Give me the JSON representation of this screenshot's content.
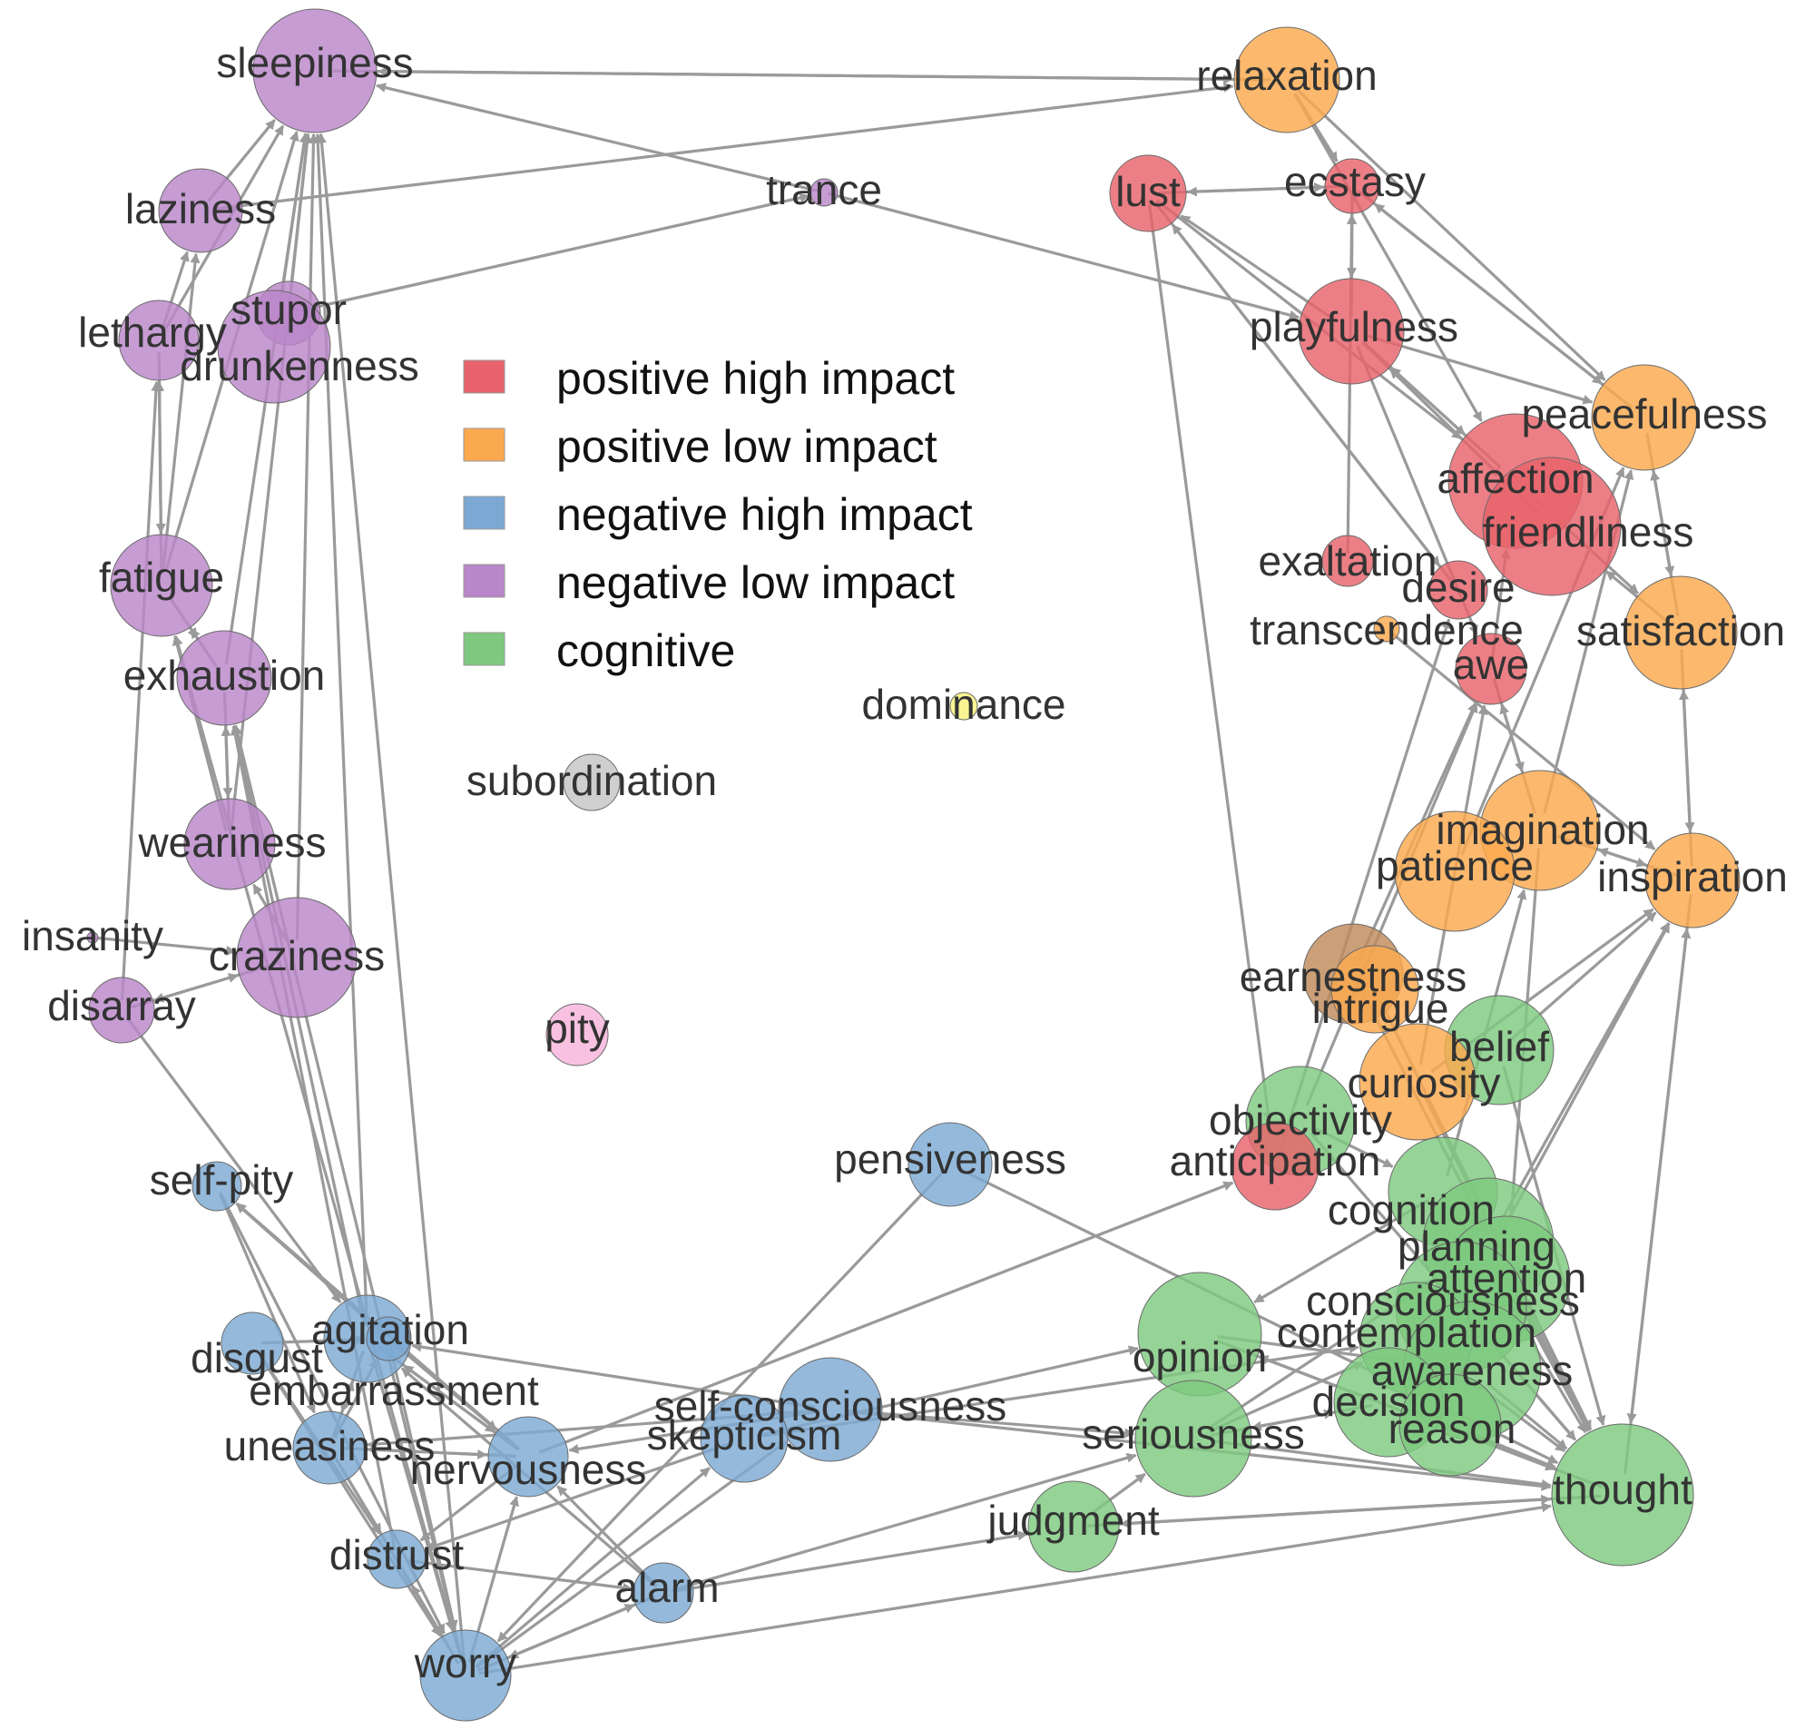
{
  "legend": {
    "items": [
      {
        "label": "positive high impact",
        "color": "#e8636b"
      },
      {
        "label": "positive low impact",
        "color": "#fba94e"
      },
      {
        "label": "negative high impact",
        "color": "#7ca9d3"
      },
      {
        "label": "negative low impact",
        "color": "#b986c9"
      },
      {
        "label": "cognitive",
        "color": "#7ec97f"
      }
    ]
  },
  "colors": {
    "positive_high": "#e8636b",
    "positive_low": "#fba94e",
    "negative_high": "#7ca9d3",
    "negative_low": "#b986c9",
    "cognitive": "#7ec97f",
    "subordination": "#c4c4c4",
    "dominance": "#f6f27a",
    "pity": "#f7b3da",
    "edge": "#9a9a9a",
    "label": "#333333"
  },
  "nodes": [
    {
      "id": "sleepiness",
      "label": "sleepiness",
      "group": "negative_low"
    },
    {
      "id": "laziness",
      "label": "laziness",
      "group": "negative_low"
    },
    {
      "id": "lethargy",
      "label": "lethargy",
      "group": "negative_low"
    },
    {
      "id": "stupor",
      "label": "stupor",
      "group": "negative_low"
    },
    {
      "id": "drunkenness",
      "label": "drunkenness",
      "group": "negative_low"
    },
    {
      "id": "fatigue",
      "label": "fatigue",
      "group": "negative_low"
    },
    {
      "id": "exhaustion",
      "label": "exhaustion",
      "group": "negative_low"
    },
    {
      "id": "weariness",
      "label": "weariness",
      "group": "negative_low"
    },
    {
      "id": "insanity",
      "label": "insanity",
      "group": "negative_low"
    },
    {
      "id": "craziness",
      "label": "craziness",
      "group": "negative_low"
    },
    {
      "id": "disarray",
      "label": "disarray",
      "group": "negative_low"
    },
    {
      "id": "trance",
      "label": "trance",
      "group": "negative_low"
    },
    {
      "id": "relaxation",
      "label": "relaxation",
      "group": "positive_low"
    },
    {
      "id": "lust",
      "label": "lust",
      "group": "positive_high"
    },
    {
      "id": "ecstasy",
      "label": "ecstasy",
      "group": "positive_high"
    },
    {
      "id": "playfulness",
      "label": "playfulness",
      "group": "positive_high"
    },
    {
      "id": "peacefulness",
      "label": "peacefulness",
      "group": "positive_low"
    },
    {
      "id": "affection",
      "label": "affection",
      "group": "positive_high"
    },
    {
      "id": "friendliness",
      "label": "friendliness",
      "group": "positive_high"
    },
    {
      "id": "exaltation",
      "label": "exaltation",
      "group": "positive_high"
    },
    {
      "id": "desire",
      "label": "desire",
      "group": "positive_high"
    },
    {
      "id": "transcendence",
      "label": "transcendence",
      "group": "positive_low"
    },
    {
      "id": "satisfaction",
      "label": "satisfaction",
      "group": "positive_low"
    },
    {
      "id": "awe",
      "label": "awe",
      "group": "positive_high"
    },
    {
      "id": "imagination",
      "label": "imagination",
      "group": "positive_low"
    },
    {
      "id": "patience",
      "label": "patience",
      "group": "positive_low"
    },
    {
      "id": "inspiration",
      "label": "inspiration",
      "group": "positive_low"
    },
    {
      "id": "earnestness",
      "label": "earnestness",
      "group": "earnest"
    },
    {
      "id": "intrigue",
      "label": "intrigue",
      "group": "positive_low"
    },
    {
      "id": "belief",
      "label": "belief",
      "group": "cognitive"
    },
    {
      "id": "curiosity",
      "label": "curiosity",
      "group": "positive_low"
    },
    {
      "id": "objectivity",
      "label": "objectivity",
      "group": "cognitive"
    },
    {
      "id": "anticipation",
      "label": "anticipation",
      "group": "positive_high"
    },
    {
      "id": "cognition",
      "label": "cognition",
      "group": "cognitive"
    },
    {
      "id": "planning",
      "label": "planning",
      "group": "cognitive"
    },
    {
      "id": "attention",
      "label": "attention",
      "group": "cognitive"
    },
    {
      "id": "consciousness",
      "label": "consciousness",
      "group": "cognitive"
    },
    {
      "id": "contemplation",
      "label": "contemplation",
      "group": "cognitive"
    },
    {
      "id": "opinion",
      "label": "opinion",
      "group": "cognitive"
    },
    {
      "id": "awareness",
      "label": "awareness",
      "group": "cognitive"
    },
    {
      "id": "decision",
      "label": "decision",
      "group": "cognitive"
    },
    {
      "id": "reason",
      "label": "reason",
      "group": "cognitive"
    },
    {
      "id": "seriousness",
      "label": "seriousness",
      "group": "cognitive"
    },
    {
      "id": "thought",
      "label": "thought",
      "group": "cognitive"
    },
    {
      "id": "judgment",
      "label": "judgment",
      "group": "cognitive"
    },
    {
      "id": "dominance",
      "label": "dominance",
      "group": "dominance"
    },
    {
      "id": "subordination",
      "label": "subordination",
      "group": "subordination"
    },
    {
      "id": "pity",
      "label": "pity",
      "group": "pity"
    },
    {
      "id": "pensiveness",
      "label": "pensiveness",
      "group": "negative_high"
    },
    {
      "id": "self-pity",
      "label": "self-pity",
      "group": "negative_high"
    },
    {
      "id": "agitation",
      "label": "agitation",
      "group": "negative_high"
    },
    {
      "id": "disgust",
      "label": "disgust",
      "group": "negative_high"
    },
    {
      "id": "embarrassment",
      "label": "embarrassment",
      "group": "negative_high"
    },
    {
      "id": "uneasiness",
      "label": "uneasiness",
      "group": "negative_high"
    },
    {
      "id": "nervousness",
      "label": "nervousness",
      "group": "negative_high"
    },
    {
      "id": "self-consciousness",
      "label": "self-consciousness",
      "group": "negative_high"
    },
    {
      "id": "skepticism",
      "label": "skepticism",
      "group": "negative_high"
    },
    {
      "id": "distrust",
      "label": "distrust",
      "group": "negative_high"
    },
    {
      "id": "alarm",
      "label": "alarm",
      "group": "negative_high"
    },
    {
      "id": "worry",
      "label": "worry",
      "group": "negative_high"
    }
  ],
  "edges": [
    [
      "sleepiness",
      "relaxation"
    ],
    [
      "relaxation",
      "sleepiness"
    ],
    [
      "trance",
      "sleepiness"
    ],
    [
      "laziness",
      "relaxation"
    ],
    [
      "stupor",
      "trance"
    ],
    [
      "trance",
      "playfulness"
    ],
    [
      "laziness",
      "sleepiness"
    ],
    [
      "lethargy",
      "laziness"
    ],
    [
      "lethargy",
      "sleepiness"
    ],
    [
      "drunkenness",
      "sleepiness"
    ],
    [
      "stupor",
      "sleepiness"
    ],
    [
      "fatigue",
      "sleepiness"
    ],
    [
      "fatigue",
      "laziness"
    ],
    [
      "fatigue",
      "lethargy"
    ],
    [
      "lethargy",
      "fatigue"
    ],
    [
      "exhaustion",
      "fatigue"
    ],
    [
      "fatigue",
      "exhaustion"
    ],
    [
      "exhaustion",
      "sleepiness"
    ],
    [
      "weariness",
      "exhaustion"
    ],
    [
      "exhaustion",
      "weariness"
    ],
    [
      "weariness",
      "fatigue"
    ],
    [
      "weariness",
      "sleepiness"
    ],
    [
      "craziness",
      "weariness"
    ],
    [
      "insanity",
      "craziness"
    ],
    [
      "craziness",
      "disarray"
    ],
    [
      "disarray",
      "lethargy"
    ],
    [
      "disarray",
      "craziness"
    ],
    [
      "craziness",
      "sleepiness"
    ],
    [
      "agitation",
      "sleepiness"
    ],
    [
      "agitation",
      "exhaustion"
    ],
    [
      "worry",
      "sleepiness"
    ],
    [
      "worry",
      "fatigue"
    ],
    [
      "worry",
      "exhaustion"
    ],
    [
      "distrust",
      "exhaustion"
    ],
    [
      "disarray",
      "agitation"
    ],
    [
      "lust",
      "ecstasy"
    ],
    [
      "ecstasy",
      "lust"
    ],
    [
      "relaxation",
      "ecstasy"
    ],
    [
      "relaxation",
      "peacefulness"
    ],
    [
      "relaxation",
      "affection"
    ],
    [
      "ecstasy",
      "playfulness"
    ],
    [
      "playfulness",
      "ecstasy"
    ],
    [
      "ecstasy",
      "peacefulness"
    ],
    [
      "peacefulness",
      "ecstasy"
    ],
    [
      "lust",
      "affection"
    ],
    [
      "lust",
      "desire"
    ],
    [
      "desire",
      "lust"
    ],
    [
      "playfulness",
      "lust"
    ],
    [
      "lust",
      "anticipation"
    ],
    [
      "playfulness",
      "affection"
    ],
    [
      "affection",
      "playfulness"
    ],
    [
      "playfulness",
      "peacefulness"
    ],
    [
      "playfulness",
      "friendliness"
    ],
    [
      "friendliness",
      "playfulness"
    ],
    [
      "exaltation",
      "ecstasy"
    ],
    [
      "playfulness",
      "awe"
    ],
    [
      "awe",
      "affection"
    ],
    [
      "peacefulness",
      "satisfaction"
    ],
    [
      "satisfaction",
      "peacefulness"
    ],
    [
      "affection",
      "satisfaction"
    ],
    [
      "satisfaction",
      "friendliness"
    ],
    [
      "satisfaction",
      "inspiration"
    ],
    [
      "inspiration",
      "satisfaction"
    ],
    [
      "transcendence",
      "inspiration"
    ],
    [
      "imagination",
      "inspiration"
    ],
    [
      "patience",
      "peacefulness"
    ],
    [
      "imagination",
      "peacefulness"
    ],
    [
      "inspiration",
      "imagination"
    ],
    [
      "awe",
      "imagination"
    ],
    [
      "imagination",
      "awe"
    ],
    [
      "earnestness",
      "awe"
    ],
    [
      "curiosity",
      "inspiration"
    ],
    [
      "belief",
      "inspiration"
    ],
    [
      "thought",
      "inspiration"
    ],
    [
      "inspiration",
      "thought"
    ],
    [
      "cognition",
      "imagination"
    ],
    [
      "planning",
      "inspiration"
    ],
    [
      "imagination",
      "attention"
    ],
    [
      "consciousness",
      "inspiration"
    ],
    [
      "objectivity",
      "awe"
    ],
    [
      "anticipation",
      "desire"
    ],
    [
      "curiosity",
      "awe"
    ],
    [
      "cognition",
      "opinion"
    ],
    [
      "opinion",
      "thought"
    ],
    [
      "thought",
      "opinion"
    ],
    [
      "contemplation",
      "thought"
    ],
    [
      "awareness",
      "thought"
    ],
    [
      "decision",
      "thought"
    ],
    [
      "reason",
      "thought"
    ],
    [
      "seriousness",
      "thought"
    ],
    [
      "judgment",
      "thought"
    ],
    [
      "thought",
      "judgment"
    ],
    [
      "planning",
      "thought"
    ],
    [
      "attention",
      "thought"
    ],
    [
      "consciousness",
      "thought"
    ],
    [
      "cognition",
      "thought"
    ],
    [
      "belief",
      "thought"
    ],
    [
      "curiosity",
      "thought"
    ],
    [
      "earnestness",
      "thought"
    ],
    [
      "intrigue",
      "thought"
    ],
    [
      "judgment",
      "seriousness"
    ],
    [
      "seriousness",
      "decision"
    ],
    [
      "seriousness",
      "contemplation"
    ],
    [
      "opinion",
      "awareness"
    ],
    [
      "decision",
      "seriousness"
    ],
    [
      "objectivity",
      "cognition"
    ],
    [
      "objectivity",
      "thought"
    ],
    [
      "seriousness",
      "planning"
    ],
    [
      "pensiveness",
      "thought"
    ],
    [
      "pensiveness",
      "worry"
    ],
    [
      "self-consciousness",
      "thought"
    ],
    [
      "self-consciousness",
      "agitation"
    ],
    [
      "self-consciousness",
      "seriousness"
    ],
    [
      "skepticism",
      "opinion"
    ],
    [
      "skepticism",
      "contemplation"
    ],
    [
      "embarrassment",
      "self-pity"
    ],
    [
      "nervousness",
      "self-pity"
    ],
    [
      "self-pity",
      "uneasiness"
    ],
    [
      "self-pity",
      "worry"
    ],
    [
      "nervousness",
      "anticipation"
    ],
    [
      "alarm",
      "seriousness"
    ],
    [
      "alarm",
      "judgment"
    ],
    [
      "alarm",
      "worry"
    ],
    [
      "worry",
      "alarm"
    ],
    [
      "alarm",
      "agitation"
    ],
    [
      "alarm",
      "nervousness"
    ],
    [
      "distrust",
      "alarm"
    ],
    [
      "worry",
      "nervousness"
    ],
    [
      "worry",
      "skepticism"
    ],
    [
      "worry",
      "self-consciousness"
    ],
    [
      "worry",
      "thought"
    ],
    [
      "agitation",
      "worry"
    ],
    [
      "disgust",
      "worry"
    ],
    [
      "uneasiness",
      "worry"
    ],
    [
      "uneasiness",
      "nervousness"
    ],
    [
      "nervousness",
      "uneasiness"
    ],
    [
      "embarrassment",
      "worry"
    ],
    [
      "distrust",
      "worry"
    ],
    [
      "worry",
      "distrust"
    ],
    [
      "uneasiness",
      "distrust"
    ],
    [
      "nervousness",
      "distrust"
    ],
    [
      "disgust",
      "distrust"
    ],
    [
      "agitation",
      "uneasiness"
    ],
    [
      "uneasiness",
      "agitation"
    ],
    [
      "nervousness",
      "agitation"
    ],
    [
      "disgust",
      "embarrassment"
    ],
    [
      "agitation",
      "nervousness"
    ],
    [
      "skepticism",
      "distrust"
    ],
    [
      "self-consciousness",
      "nervousness"
    ],
    [
      "embarrassment",
      "nervousness"
    ],
    [
      "self-consciousness",
      "uneasiness"
    ],
    [
      "uneasiness",
      "embarrassment"
    ]
  ]
}
